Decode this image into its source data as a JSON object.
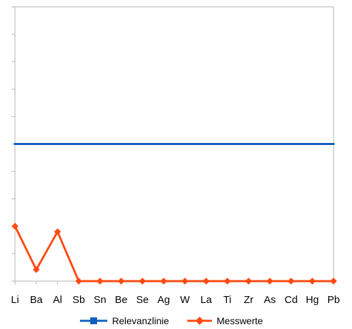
{
  "chart_data": {
    "type": "line",
    "categories": [
      "Li",
      "Ba",
      "Al",
      "Sb",
      "Sn",
      "Be",
      "Se",
      "Ag",
      "W",
      "La",
      "Ti",
      "Zr",
      "As",
      "Cd",
      "Hg",
      "Pb"
    ],
    "ylim": [
      0,
      10
    ],
    "y_tick_count": 10,
    "grid": false,
    "legend_position": "bottom",
    "series": [
      {
        "name": "Relevanzlinie",
        "color": "#0f5fbf",
        "marker": "square",
        "values": [
          5,
          5,
          5,
          5,
          5,
          5,
          5,
          5,
          5,
          5,
          5,
          5,
          5,
          5,
          5,
          5
        ]
      },
      {
        "name": "Messwerte",
        "color": "#ff4a10",
        "marker": "diamond",
        "values": [
          2,
          0.42,
          1.8,
          0,
          0,
          0,
          0,
          0,
          0,
          0,
          0,
          0,
          0,
          0,
          0,
          0
        ]
      }
    ]
  }
}
